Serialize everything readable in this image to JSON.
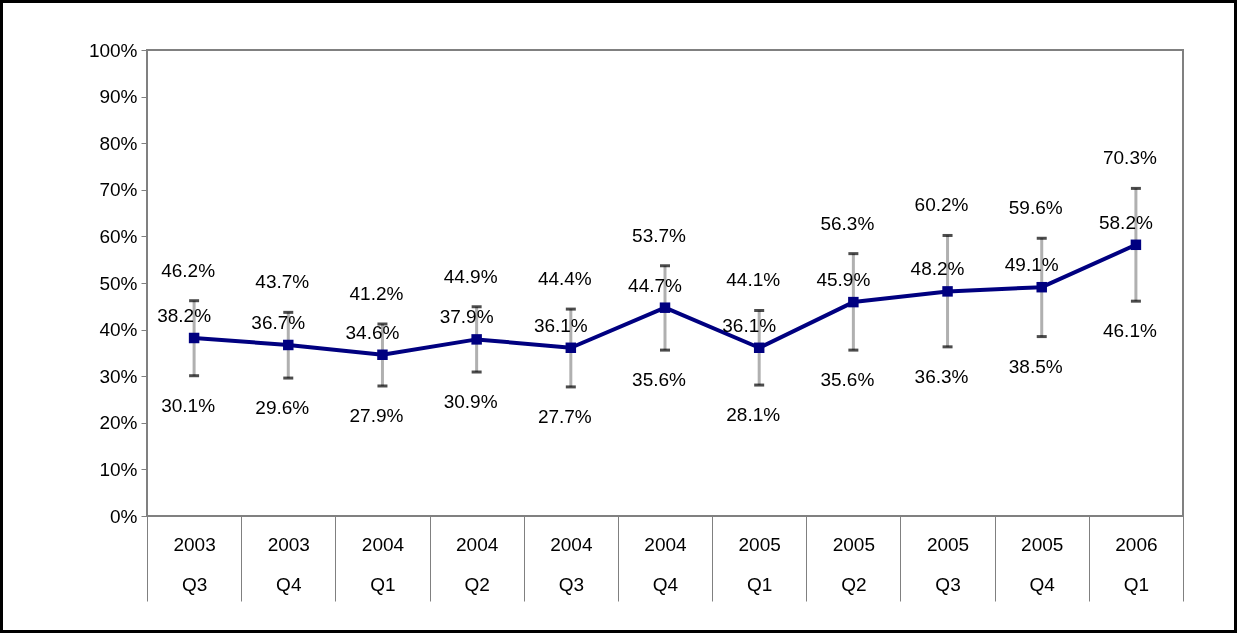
{
  "chart_data": {
    "type": "line",
    "categories": [
      "2003 Q3",
      "2003 Q4",
      "2004 Q1",
      "2004 Q2",
      "2004 Q3",
      "2004 Q4",
      "2005 Q1",
      "2005 Q2",
      "2005 Q3",
      "2005 Q4",
      "2006 Q1"
    ],
    "series": [
      {
        "color": "#000080",
        "marker": "square",
        "line_style": "solid",
        "values": [
          38.2,
          36.7,
          34.6,
          37.9,
          36.1,
          44.7,
          36.1,
          45.9,
          48.2,
          49.1,
          58.2
        ],
        "value_labels": [
          "38.2%",
          "36.7%",
          "34.6%",
          "37.9%",
          "36.1%",
          "44.7%",
          "36.1%",
          "45.9%",
          "48.2%",
          "49.1%",
          "58.2%"
        ],
        "errors": [
          [
            30.1,
            46.2
          ],
          [
            29.6,
            43.7
          ],
          [
            27.9,
            41.2
          ],
          [
            30.9,
            44.9
          ],
          [
            27.7,
            44.4
          ],
          [
            35.6,
            53.7
          ],
          [
            28.1,
            44.1
          ],
          [
            35.6,
            56.3
          ],
          [
            36.3,
            60.2
          ],
          [
            38.5,
            59.6
          ],
          [
            46.1,
            70.3
          ]
        ]
      }
    ],
    "ylim": [
      0,
      100
    ],
    "yticks": [
      {
        "value": 0,
        "label": "0%"
      },
      {
        "value": 10,
        "label": "10%"
      },
      {
        "value": 20,
        "label": "20%"
      },
      {
        "value": 30,
        "label": "30%"
      },
      {
        "value": 40,
        "label": "40%"
      },
      {
        "value": 50,
        "label": "50%"
      },
      {
        "value": 60,
        "label": "60%"
      },
      {
        "value": 70,
        "label": "70%"
      },
      {
        "value": 80,
        "label": "80%"
      },
      {
        "value": 90,
        "label": "90%"
      },
      {
        "value": 100,
        "label": "100%"
      }
    ],
    "grid": false,
    "annotations": [
      {
        "text": "46.2%",
        "x": "2003 Q3",
        "y": 46.2
      },
      {
        "text": "30.1%",
        "x": "2003 Q3",
        "y": 30.1
      },
      {
        "text": "43.7%",
        "x": "2003 Q4",
        "y": 43.7
      },
      {
        "text": "29.6%",
        "x": "2003 Q4",
        "y": 29.6
      },
      {
        "text": "41.2%",
        "x": "2004 Q1",
        "y": 41.2
      },
      {
        "text": "27.9%",
        "x": "2004 Q1",
        "y": 27.9
      },
      {
        "text": "44.9%",
        "x": "2004 Q2",
        "y": 44.9
      },
      {
        "text": "30.9%",
        "x": "2004 Q2",
        "y": 30.9
      },
      {
        "text": "44.4%",
        "x": "2004 Q3",
        "y": 44.4
      },
      {
        "text": "27.7%",
        "x": "2004 Q3",
        "y": 27.7
      },
      {
        "text": "53.7%",
        "x": "2004 Q4",
        "y": 53.7
      },
      {
        "text": "35.6%",
        "x": "2004 Q4",
        "y": 35.6
      },
      {
        "text": "44.1%",
        "x": "2005 Q1",
        "y": 44.1
      },
      {
        "text": "28.1%",
        "x": "2005 Q1",
        "y": 28.1
      },
      {
        "text": "56.3%",
        "x": "2005 Q2",
        "y": 56.3
      },
      {
        "text": "35.6%",
        "x": "2005 Q2",
        "y": 35.6
      },
      {
        "text": "60.2%",
        "x": "2005 Q3",
        "y": 60.2
      },
      {
        "text": "36.3%",
        "x": "2005 Q3",
        "y": 36.3
      },
      {
        "text": "59.6%",
        "x": "2005 Q4",
        "y": 59.6
      },
      {
        "text": "38.5%",
        "x": "2005 Q4",
        "y": 38.5
      },
      {
        "text": "70.3%",
        "x": "2006 Q1",
        "y": 70.3
      },
      {
        "text": "46.1%",
        "x": "2006 Q1",
        "y": 46.1
      }
    ]
  }
}
